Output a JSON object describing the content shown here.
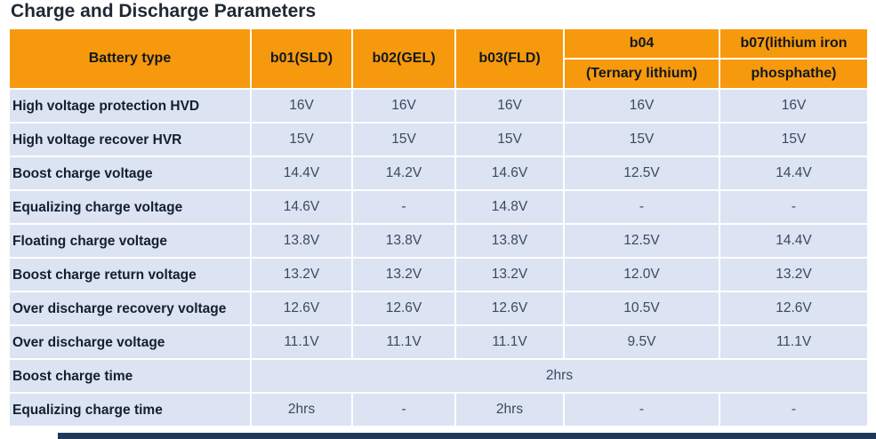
{
  "title": "Charge and Discharge Parameters",
  "colors": {
    "header_bg": "#F7990D",
    "row_bg": "#DCE3F3",
    "label_text": "#13202E",
    "value_text": "#3C4A5E",
    "bottom_bar": "#20395B"
  },
  "table": {
    "battery_type_header": "Battery type",
    "simple_columns": [
      "b01(SLD)",
      "b02(GEL)",
      "b03(FLD)"
    ],
    "split_columns": [
      {
        "top": "b04",
        "bottom": "(Ternary lithium)"
      },
      {
        "top": "b07(lithium iron",
        "bottom": "phosphathe)"
      }
    ],
    "rows": [
      {
        "label": "High voltage protection HVD",
        "values": [
          "16V",
          "16V",
          "16V",
          "16V",
          "16V"
        ]
      },
      {
        "label": "High voltage recover HVR",
        "values": [
          "15V",
          "15V",
          "15V",
          "15V",
          "15V"
        ]
      },
      {
        "label": "Boost charge voltage",
        "values": [
          "14.4V",
          "14.2V",
          "14.6V",
          "12.5V",
          "14.4V"
        ]
      },
      {
        "label": "Equalizing charge voltage",
        "values": [
          "14.6V",
          "-",
          "14.8V",
          "-",
          "-"
        ]
      },
      {
        "label": "Floating charge voltage",
        "values": [
          "13.8V",
          "13.8V",
          "13.8V",
          "12.5V",
          "14.4V"
        ]
      },
      {
        "label": "Boost charge return voltage",
        "values": [
          "13.2V",
          "13.2V",
          "13.2V",
          "12.0V",
          "13.2V"
        ]
      },
      {
        "label": "Over discharge recovery voltage",
        "values": [
          "12.6V",
          "12.6V",
          "12.6V",
          "10.5V",
          "12.6V"
        ]
      },
      {
        "label": "Over discharge voltage",
        "values": [
          "11.1V",
          "11.1V",
          "11.1V",
          "9.5V",
          "11.1V"
        ]
      },
      {
        "label": "Boost charge time",
        "merged": "2hrs"
      },
      {
        "label": "Equalizing charge time",
        "values": [
          "2hrs",
          "-",
          "2hrs",
          "-",
          "-"
        ]
      }
    ]
  }
}
